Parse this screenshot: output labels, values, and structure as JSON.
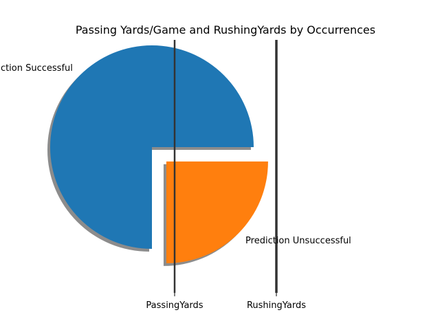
{
  "chart_data": {
    "type": "pie",
    "title": "Passing Yards/Game and RushingYards by Occurrences",
    "slices": [
      {
        "label": "Prediction Successful",
        "value": 75,
        "color": "#1f77b4",
        "explode": 0
      },
      {
        "label": "Prediction Unsuccessful",
        "value": 25,
        "color": "#ff7f0e",
        "explode": 0.2
      }
    ],
    "start_angle": 0,
    "shadow": true,
    "xticks": [
      "PassingYards",
      "RushingYards"
    ],
    "xaxis_color": "#333333"
  }
}
